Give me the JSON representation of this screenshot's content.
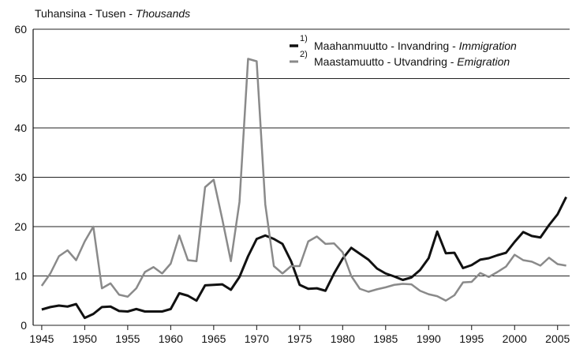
{
  "chart_data": {
    "type": "line",
    "title": "Tuhansina - Tusen - ",
    "title_italic": "Thousands",
    "x": [
      1945,
      1946,
      1947,
      1948,
      1949,
      1950,
      1951,
      1952,
      1953,
      1954,
      1955,
      1956,
      1957,
      1958,
      1959,
      1960,
      1961,
      1962,
      1963,
      1964,
      1965,
      1966,
      1967,
      1968,
      1969,
      1970,
      1971,
      1972,
      1973,
      1974,
      1975,
      1976,
      1977,
      1978,
      1979,
      1980,
      1981,
      1982,
      1983,
      1984,
      1985,
      1986,
      1987,
      1988,
      1989,
      1990,
      1991,
      1992,
      1993,
      1994,
      1995,
      1996,
      1997,
      1998,
      1999,
      2000,
      2001,
      2002,
      2003,
      2004,
      2005,
      2006
    ],
    "series": [
      {
        "name": "Maahanmuutto - Invandring - ",
        "name_italic": "Immigration",
        "note": "1)",
        "color": "#111111",
        "width": 3,
        "values": [
          3.2,
          3.7,
          4.0,
          3.8,
          4.3,
          1.5,
          2.3,
          3.7,
          3.8,
          2.9,
          2.8,
          3.3,
          2.8,
          2.8,
          2.8,
          3.3,
          6.5,
          6.0,
          5.0,
          8.1,
          8.2,
          8.3,
          7.2,
          9.8,
          14.0,
          17.5,
          18.2,
          17.5,
          16.5,
          13.0,
          8.2,
          7.4,
          7.5,
          7.0,
          10.5,
          13.5,
          15.7,
          14.5,
          13.3,
          11.5,
          10.5,
          9.9,
          9.2,
          9.7,
          11.2,
          13.6,
          19.0,
          14.6,
          14.7,
          11.6,
          12.2,
          13.3,
          13.6,
          14.2,
          14.7,
          16.9,
          18.9,
          18.1,
          17.8,
          20.3,
          22.5,
          26.0
        ]
      },
      {
        "name": "Maastamuutto - Utvandring - ",
        "name_italic": "Emigration",
        "note": "2)",
        "color": "#8a8a8a",
        "width": 2.5,
        "values": [
          8.0,
          10.5,
          14.0,
          15.2,
          13.2,
          17.0,
          20.0,
          7.5,
          8.5,
          6.2,
          5.8,
          7.5,
          10.8,
          11.8,
          10.5,
          12.5,
          18.2,
          13.2,
          13.0,
          28.0,
          29.5,
          21.5,
          13.0,
          25.0,
          54.0,
          53.5,
          24.5,
          12.0,
          10.5,
          12.0,
          12.0,
          17.0,
          18.0,
          16.5,
          16.6,
          14.8,
          10.0,
          7.4,
          6.8,
          7.3,
          7.7,
          8.2,
          8.4,
          8.3,
          7.0,
          6.3,
          5.9,
          5.0,
          6.1,
          8.7,
          8.8,
          10.6,
          9.8,
          10.8,
          11.9,
          14.3,
          13.2,
          12.9,
          12.1,
          13.7,
          12.4,
          12.1
        ]
      }
    ],
    "xlim": [
      1944,
      2006.4
    ],
    "xticks": [
      1945,
      1950,
      1955,
      1960,
      1965,
      1970,
      1975,
      1980,
      1985,
      1990,
      1995,
      2000,
      2005
    ],
    "ylim": [
      0,
      60
    ],
    "yticks": [
      0,
      10,
      20,
      30,
      40,
      50,
      60
    ],
    "grid": true
  }
}
